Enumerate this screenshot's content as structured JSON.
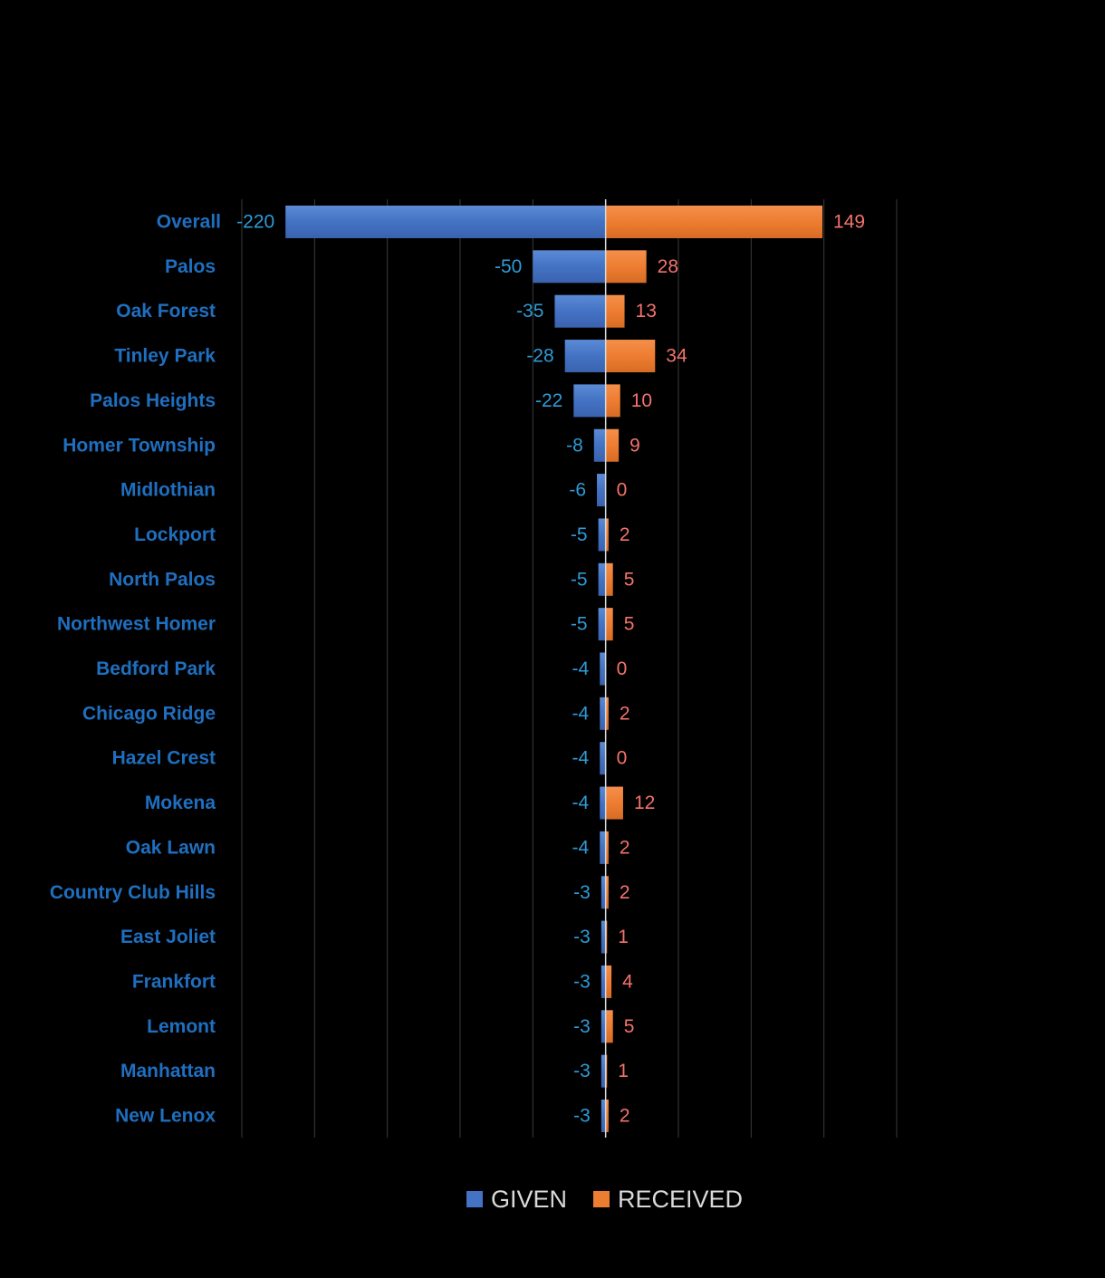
{
  "chart_data": {
    "type": "bar",
    "orientation": "horizontal",
    "title": "",
    "xlabel": "",
    "ylabel": "",
    "xlim": [
      -250,
      200
    ],
    "grid": true,
    "legend_position": "bottom",
    "categories": [
      "Overall",
      "Palos",
      "Oak Forest",
      "Tinley Park",
      "Palos Heights",
      "Homer Township",
      "Midlothian",
      "Lockport",
      "North Palos",
      "Northwest Homer",
      "Bedford Park",
      "Chicago Ridge",
      "Hazel Crest",
      "Mokena",
      "Oak Lawn",
      "Country Club Hills",
      "East Joliet",
      "Frankfort",
      "Lemont",
      "Manhattan",
      "New Lenox"
    ],
    "series": [
      {
        "name": "GIVEN",
        "color": "#4472C4",
        "label_color": "#2E9BD6",
        "values": [
          -220,
          -50,
          -35,
          -28,
          -22,
          -8,
          -6,
          -5,
          -5,
          -5,
          -4,
          -4,
          -4,
          -4,
          -4,
          -3,
          -3,
          -3,
          -3,
          -3,
          -3
        ]
      },
      {
        "name": "RECEIVED",
        "color": "#ED7D31",
        "label_color": "#F4736B",
        "values": [
          149,
          28,
          13,
          34,
          10,
          9,
          0,
          2,
          5,
          5,
          0,
          2,
          0,
          12,
          2,
          2,
          1,
          4,
          5,
          1,
          2
        ]
      }
    ],
    "colors": {
      "category_label": "#1F6FC0",
      "gridline": "#3A3A3A",
      "axis": "#D9D9D9",
      "legend_text": "#D9D9D9"
    }
  }
}
